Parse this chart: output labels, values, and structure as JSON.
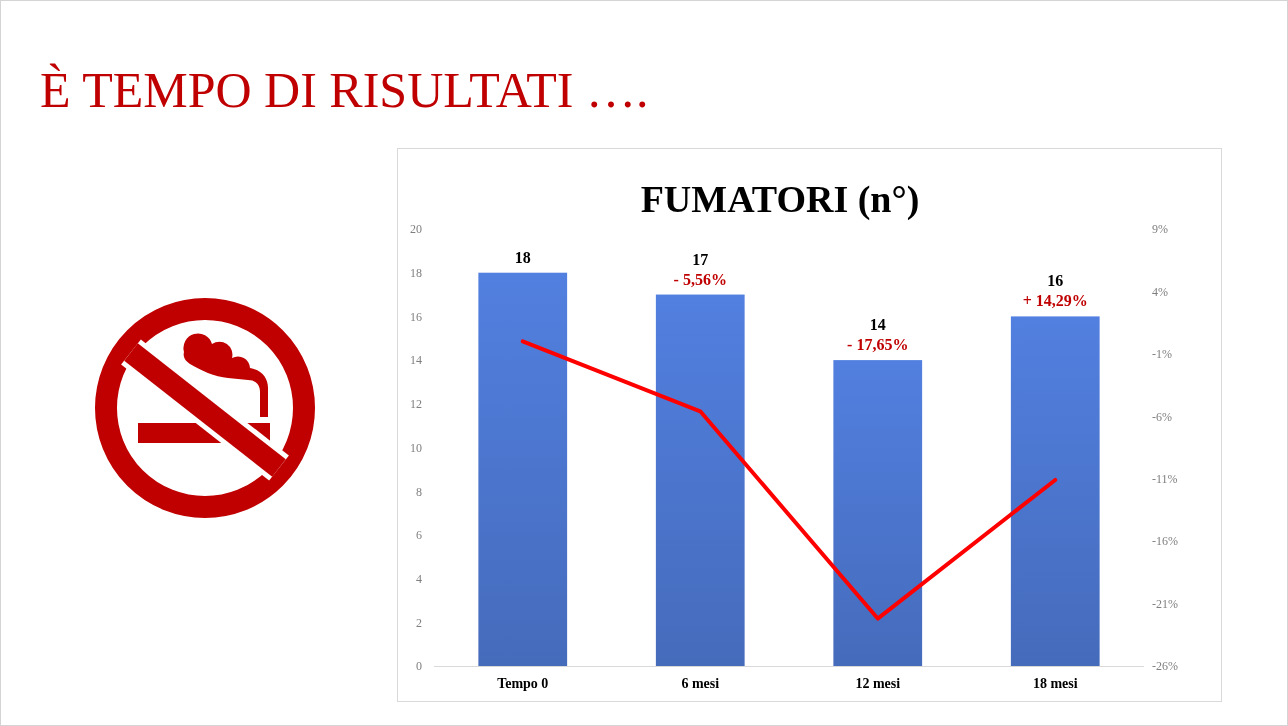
{
  "chart_data": {
    "type": "bar",
    "title": "È TEMPO DI RISULTATI ….",
    "subtitle": "FUMATORI (n°)",
    "categories": [
      "Tempo 0",
      "6 mesi",
      "12 mesi",
      "18 mesi"
    ],
    "series": [
      {
        "color": "#4a73c9",
        "values": [
          18,
          17,
          14,
          16
        ],
        "value_labels": [
          "18",
          "17",
          "14",
          "16"
        ]
      },
      {
        "type": "line",
        "axis": "y2",
        "color": "#ff0000",
        "values": [
          0,
          -5.6,
          -22.2,
          -11.1
        ]
      }
    ],
    "ylim": [
      0,
      20
    ],
    "yticks": [
      0,
      2,
      4,
      6,
      8,
      10,
      12,
      14,
      16,
      18,
      20
    ],
    "y2lim": [
      -26,
      9
    ],
    "y2ticks": [
      {
        "value": -26,
        "label": "-26%"
      },
      {
        "value": -21,
        "label": "-21%"
      },
      {
        "value": -16,
        "label": "-16%"
      },
      {
        "value": -11,
        "label": "-11%"
      },
      {
        "value": -6,
        "label": "-6%"
      },
      {
        "value": -1,
        "label": "-1%"
      },
      {
        "value": 4,
        "label": "4%"
      },
      {
        "value": 9,
        "label": "9%"
      }
    ],
    "annotations": [
      {
        "text": "- 5,56%",
        "x": "6 mesi",
        "y": 17
      },
      {
        "text": "- 17,65%",
        "x": "12 mesi",
        "y": 14
      },
      {
        "text": "+ 14,29%",
        "x": "18 mesi",
        "y": 16
      }
    ]
  }
}
